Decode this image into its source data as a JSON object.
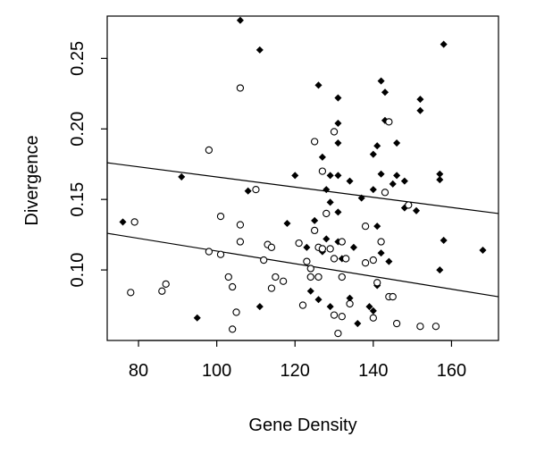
{
  "chart_data": {
    "type": "scatter",
    "title": "",
    "xlabel": "Gene Density",
    "ylabel": "Divergence",
    "xlim": [
      72,
      172
    ],
    "ylim": [
      0.05,
      0.28
    ],
    "xticks": [
      80,
      100,
      120,
      140,
      160
    ],
    "yticks": [
      0.1,
      0.15,
      0.2,
      0.25
    ],
    "xtick_labels": [
      "80",
      "100",
      "120",
      "140",
      "160"
    ],
    "ytick_labels": [
      "0.10",
      "0.15",
      "0.20",
      "0.25"
    ],
    "grid": false,
    "legend": "none",
    "series": [
      {
        "marker": "filled-diamond",
        "color": "#000000",
        "points": [
          [
            76,
            0.134
          ],
          [
            91,
            0.166
          ],
          [
            95,
            0.066
          ],
          [
            106,
            0.277
          ],
          [
            108,
            0.156
          ],
          [
            111,
            0.256
          ],
          [
            111,
            0.074
          ],
          [
            118,
            0.133
          ],
          [
            120,
            0.167
          ],
          [
            123,
            0.116
          ],
          [
            124,
            0.085
          ],
          [
            125,
            0.135
          ],
          [
            126,
            0.231
          ],
          [
            126,
            0.079
          ],
          [
            127,
            0.18
          ],
          [
            127,
            0.113
          ],
          [
            128,
            0.157
          ],
          [
            128,
            0.122
          ],
          [
            129,
            0.167
          ],
          [
            129,
            0.148
          ],
          [
            129,
            0.074
          ],
          [
            130,
            0.108
          ],
          [
            131,
            0.167
          ],
          [
            131,
            0.204
          ],
          [
            131,
            0.19
          ],
          [
            131,
            0.222
          ],
          [
            131,
            0.141
          ],
          [
            131,
            0.12
          ],
          [
            132,
            0.108
          ],
          [
            134,
            0.163
          ],
          [
            134,
            0.08
          ],
          [
            135,
            0.116
          ],
          [
            136,
            0.062
          ],
          [
            137,
            0.151
          ],
          [
            139,
            0.074
          ],
          [
            140,
            0.182
          ],
          [
            140,
            0.157
          ],
          [
            140,
            0.071
          ],
          [
            141,
            0.188
          ],
          [
            141,
            0.131
          ],
          [
            141,
            0.089
          ],
          [
            142,
            0.234
          ],
          [
            142,
            0.168
          ],
          [
            142,
            0.112
          ],
          [
            143,
            0.226
          ],
          [
            143,
            0.206
          ],
          [
            144,
            0.106
          ],
          [
            145,
            0.161
          ],
          [
            146,
            0.19
          ],
          [
            146,
            0.167
          ],
          [
            148,
            0.144
          ],
          [
            148,
            0.163
          ],
          [
            151,
            0.142
          ],
          [
            152,
            0.221
          ],
          [
            152,
            0.213
          ],
          [
            157,
            0.168
          ],
          [
            157,
            0.164
          ],
          [
            157,
            0.1
          ],
          [
            158,
            0.26
          ],
          [
            158,
            0.121
          ],
          [
            168,
            0.114
          ]
        ]
      },
      {
        "marker": "open-circle",
        "color": "#000000",
        "points": [
          [
            78,
            0.084
          ],
          [
            79,
            0.134
          ],
          [
            86,
            0.085
          ],
          [
            87,
            0.09
          ],
          [
            98,
            0.113
          ],
          [
            98,
            0.185
          ],
          [
            101,
            0.138
          ],
          [
            101,
            0.111
          ],
          [
            103,
            0.095
          ],
          [
            104,
            0.058
          ],
          [
            104,
            0.088
          ],
          [
            105,
            0.07
          ],
          [
            106,
            0.229
          ],
          [
            106,
            0.132
          ],
          [
            106,
            0.12
          ],
          [
            110,
            0.157
          ],
          [
            112,
            0.107
          ],
          [
            113,
            0.118
          ],
          [
            114,
            0.116
          ],
          [
            114,
            0.087
          ],
          [
            115,
            0.095
          ],
          [
            117,
            0.092
          ],
          [
            121,
            0.119
          ],
          [
            122,
            0.075
          ],
          [
            123,
            0.106
          ],
          [
            124,
            0.101
          ],
          [
            124,
            0.095
          ],
          [
            125,
            0.191
          ],
          [
            125,
            0.128
          ],
          [
            126,
            0.116
          ],
          [
            126,
            0.095
          ],
          [
            127,
            0.17
          ],
          [
            127,
            0.115
          ],
          [
            128,
            0.14
          ],
          [
            129,
            0.115
          ],
          [
            130,
            0.198
          ],
          [
            130,
            0.108
          ],
          [
            130,
            0.068
          ],
          [
            131,
            0.055
          ],
          [
            132,
            0.12
          ],
          [
            132,
            0.095
          ],
          [
            132,
            0.067
          ],
          [
            133,
            0.108
          ],
          [
            134,
            0.076
          ],
          [
            138,
            0.131
          ],
          [
            138,
            0.105
          ],
          [
            140,
            0.107
          ],
          [
            140,
            0.066
          ],
          [
            141,
            0.091
          ],
          [
            142,
            0.12
          ],
          [
            143,
            0.155
          ],
          [
            144,
            0.205
          ],
          [
            144,
            0.081
          ],
          [
            145,
            0.081
          ],
          [
            146,
            0.062
          ],
          [
            149,
            0.146
          ],
          [
            152,
            0.06
          ],
          [
            156,
            0.06
          ]
        ]
      }
    ],
    "lines": [
      {
        "x": [
          72,
          172
        ],
        "y": [
          0.176,
          0.14
        ]
      },
      {
        "x": [
          72,
          172
        ],
        "y": [
          0.126,
          0.081
        ]
      }
    ]
  }
}
